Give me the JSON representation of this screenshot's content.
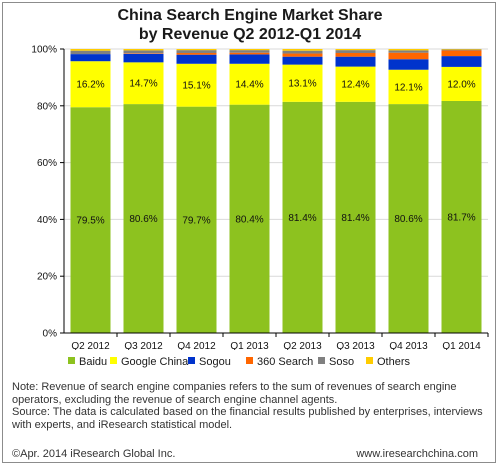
{
  "title_line1": "China Search Engine Market Share",
  "title_line2": "by Revenue Q2 2012-Q1 2014",
  "chart_data": {
    "type": "bar",
    "stacked": true,
    "categories": [
      "Q2 2012",
      "Q3 2012",
      "Q4 2012",
      "Q1 2013",
      "Q2 2013",
      "Q3 2013",
      "Q4 2013",
      "Q1 2014"
    ],
    "ylim": [
      0,
      100
    ],
    "yticks": [
      "0%",
      "20%",
      "40%",
      "60%",
      "80%",
      "100%"
    ],
    "legend_position": "bottom",
    "series": [
      {
        "name": "Baidu",
        "color": "#8dc21f",
        "values": [
          79.5,
          80.6,
          79.7,
          80.4,
          81.4,
          81.4,
          80.6,
          81.7
        ],
        "labels": [
          "79.5%",
          "80.6%",
          "79.7%",
          "80.4%",
          "81.4%",
          "81.4%",
          "80.6%",
          "81.7%"
        ]
      },
      {
        "name": "Google China",
        "color": "#ffff00",
        "values": [
          16.2,
          14.7,
          15.1,
          14.4,
          13.1,
          12.4,
          12.1,
          12.0
        ],
        "labels": [
          "16.2%",
          "14.7%",
          "15.1%",
          "14.4%",
          "13.1%",
          "12.4%",
          "12.1%",
          "12.0%"
        ]
      },
      {
        "name": "Sogou",
        "color": "#0033cc",
        "values": [
          2.5,
          3.0,
          3.2,
          3.3,
          2.8,
          3.5,
          3.7,
          3.8
        ]
      },
      {
        "name": "360 Search",
        "color": "#ff6600",
        "values": [
          0.0,
          0.2,
          0.6,
          0.6,
          1.1,
          1.3,
          2.3,
          2.0
        ]
      },
      {
        "name": "Soso",
        "color": "#808080",
        "values": [
          1.2,
          1.0,
          1.0,
          0.9,
          1.0,
          1.0,
          0.8,
          0.3
        ]
      },
      {
        "name": "Others",
        "color": "#ffcc00",
        "values": [
          0.6,
          0.5,
          0.4,
          0.4,
          0.6,
          0.4,
          0.5,
          0.2
        ]
      }
    ]
  },
  "notes": [
    "Note: Revenue of search engine companies refers to the sum of revenues of search engine operators, excluding the revenue of search engine channel agents.",
    "Source: The data is calculated based on the financial results published by enterprises, interviews with experts, and iResearch statistical model."
  ],
  "footer": {
    "copyright": "©Apr. 2014 iResearch Global  Inc.",
    "website": "www.iresearchchina.com"
  }
}
